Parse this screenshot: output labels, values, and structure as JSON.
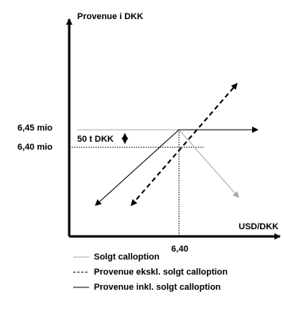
{
  "axes": {
    "y_label": "Provenue i DKK",
    "x_label": "USD/DKK",
    "y_tick_high": "6,45 mio",
    "y_tick_low": "6,40 mio",
    "x_tick": "6,40"
  },
  "annotation": "50 t DKK",
  "legend": [
    "Solgt calloption",
    "Provenue ekskl. solgt calloption",
    "Provenue inkl. solgt calloption"
  ]
}
